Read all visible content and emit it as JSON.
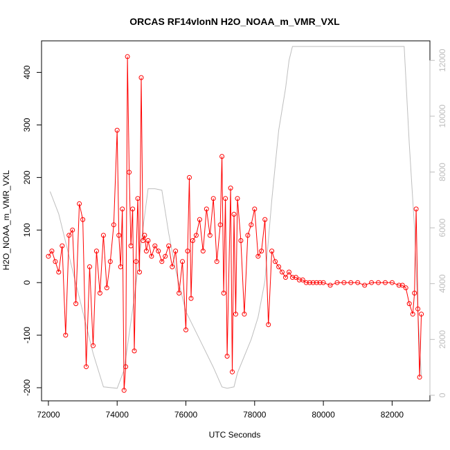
{
  "chart_data": {
    "type": "line",
    "title": "ORCAS RF14vlonN H2O_NOAA_m_VMR_VXL",
    "xlabel": "UTC Seconds",
    "ylabel": "H2O_NOAA_m_VMR_VXL",
    "xlim": [
      71800,
      83100
    ],
    "ylim": [
      -225,
      460
    ],
    "y2lim": [
      -200,
      12700
    ],
    "x_ticks": [
      72000,
      74000,
      76000,
      78000,
      80000,
      82000
    ],
    "y_ticks": [
      -200,
      -100,
      0,
      100,
      200,
      300,
      400
    ],
    "y2_ticks": [
      0,
      2000,
      4000,
      6000,
      8000,
      10000,
      12000
    ],
    "grid": false,
    "colors": {
      "h2o": "#ff0000",
      "altitude": "#bebebe",
      "axis": "#000000",
      "axis_right": "#bdbdbd"
    },
    "series": [
      {
        "role": "primary",
        "style": "line+points",
        "x": [
          72000,
          72100,
          72200,
          72300,
          72400,
          72500,
          72600,
          72700,
          72800,
          72900,
          73000,
          73100,
          73200,
          73300,
          73400,
          73500,
          73600,
          73700,
          73800,
          73900,
          74000,
          74050,
          74100,
          74150,
          74200,
          74250,
          74300,
          74350,
          74400,
          74450,
          74500,
          74550,
          74600,
          74650,
          74700,
          74750,
          74800,
          74850,
          74900,
          75000,
          75100,
          75200,
          75300,
          75400,
          75500,
          75600,
          75700,
          75800,
          75900,
          76000,
          76050,
          76100,
          76150,
          76200,
          76300,
          76400,
          76500,
          76600,
          76700,
          76800,
          76900,
          77000,
          77050,
          77100,
          77150,
          77200,
          77300,
          77350,
          77400,
          77450,
          77500,
          77600,
          77700,
          77800,
          77900,
          78000,
          78100,
          78200,
          78300,
          78400,
          78500,
          78600,
          78700,
          78800,
          78900,
          79000,
          79100,
          79200,
          79300,
          79400,
          79500,
          79600,
          79700,
          79800,
          79900,
          80000,
          80200,
          80400,
          80600,
          80800,
          81000,
          81200,
          81400,
          81600,
          81800,
          82000,
          82200,
          82300,
          82400,
          82500,
          82600,
          82650,
          82700,
          82750,
          82800,
          82850
        ],
        "y": [
          50,
          60,
          40,
          20,
          70,
          -100,
          90,
          100,
          -40,
          150,
          120,
          -160,
          30,
          -120,
          60,
          -20,
          90,
          -10,
          40,
          110,
          290,
          90,
          30,
          140,
          -205,
          -160,
          430,
          210,
          70,
          140,
          -130,
          40,
          160,
          20,
          390,
          80,
          90,
          60,
          80,
          50,
          70,
          60,
          40,
          50,
          70,
          30,
          60,
          -20,
          40,
          -90,
          60,
          200,
          -30,
          80,
          90,
          120,
          60,
          140,
          90,
          160,
          40,
          110,
          240,
          -20,
          160,
          -140,
          180,
          -170,
          130,
          -60,
          160,
          80,
          -60,
          90,
          110,
          140,
          50,
          60,
          120,
          -80,
          60,
          40,
          30,
          20,
          10,
          20,
          10,
          10,
          5,
          5,
          0,
          0,
          0,
          0,
          0,
          0,
          -5,
          0,
          0,
          0,
          0,
          -5,
          0,
          0,
          0,
          0,
          -5,
          -5,
          -10,
          -40,
          -60,
          -20,
          140,
          -50,
          -180,
          -60
        ]
      },
      {
        "role": "secondary",
        "style": "line",
        "x": [
          72050,
          72300,
          72800,
          73300,
          73600,
          74000,
          74200,
          74500,
          74700,
          74900,
          75000,
          75100,
          75300,
          75500,
          75700,
          76000,
          76400,
          76800,
          77050,
          77200,
          77400,
          77500,
          77700,
          77900,
          78100,
          78300,
          78500,
          78700,
          78900,
          79000,
          79100,
          79300,
          82200,
          82350,
          82500,
          82650,
          82750,
          82850
        ],
        "y": [
          7300,
          6500,
          4000,
          1500,
          300,
          250,
          900,
          3500,
          5500,
          7400,
          7400,
          7400,
          7350,
          5800,
          4500,
          3000,
          2000,
          1000,
          300,
          250,
          300,
          800,
          1400,
          2000,
          2800,
          4100,
          7000,
          9500,
          11000,
          12000,
          12500,
          12500,
          12500,
          12500,
          9000,
          6000,
          3000,
          700
        ]
      }
    ]
  }
}
